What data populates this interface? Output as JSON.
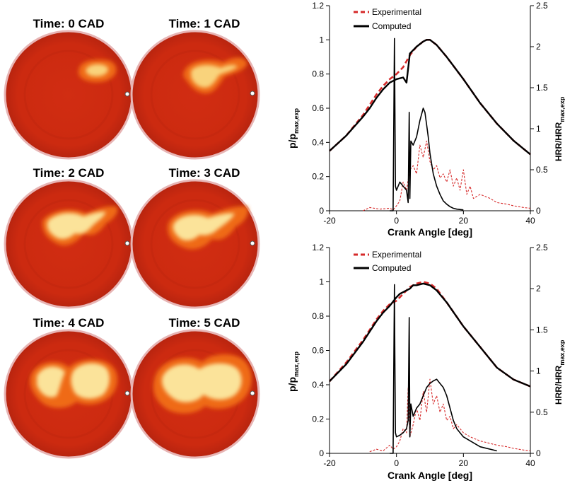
{
  "snapshot_panel": {
    "frames": [
      {
        "title": "Time: 0 CAD"
      },
      {
        "title": "Time: 1 CAD"
      },
      {
        "title": "Time: 2 CAD"
      },
      {
        "title": "Time: 3 CAD"
      },
      {
        "title": "Time: 4 CAD"
      },
      {
        "title": "Time: 5 CAD"
      }
    ],
    "colors": {
      "background": "#cf2a10",
      "rim": "#e3a0a0",
      "flame_outer": "#ef6a15",
      "flame_mid": "#f6a43c",
      "flame_core": "#fbe39a"
    }
  },
  "chart_data": [
    {
      "type": "line",
      "xlabel": "Crank Angle [deg]",
      "ylabel": {
        "main": "p/p",
        "sub": "max,exp"
      },
      "y2label": {
        "main": "HRR/HRR",
        "sub": "max,exp"
      },
      "xlim": [
        -20,
        40
      ],
      "ylim": [
        0,
        1.2
      ],
      "y2lim": [
        0,
        2.5
      ],
      "xticks": [
        "-20",
        "0",
        "20",
        "40"
      ],
      "yticks": [
        "0",
        "0.2",
        "0.4",
        "0.6",
        "0.8",
        "1",
        "1.2"
      ],
      "y2ticks": [
        "0",
        "0.5",
        "1",
        "1.5",
        "2",
        "2.5"
      ],
      "legend": [
        {
          "name": "Experimental",
          "style": "dashed",
          "color": "#d62a2a"
        },
        {
          "name": "Computed",
          "style": "solid",
          "color": "#000000"
        }
      ],
      "series": [
        {
          "name": "Experimental",
          "axis": "left",
          "color": "#d62a2a",
          "x": [
            -20,
            -15,
            -10,
            -8,
            -6,
            -4,
            -2,
            0,
            2,
            4,
            6,
            8,
            9,
            10,
            12,
            15,
            20,
            25,
            30,
            35,
            40
          ],
          "y": [
            0.35,
            0.44,
            0.56,
            0.62,
            0.68,
            0.73,
            0.77,
            0.8,
            0.84,
            0.91,
            0.96,
            0.99,
            1.0,
            1.0,
            0.97,
            0.9,
            0.77,
            0.63,
            0.51,
            0.41,
            0.33
          ]
        },
        {
          "name": "Computed",
          "axis": "left",
          "color": "#000000",
          "x": [
            -20,
            -15,
            -10,
            -8,
            -6,
            -4,
            -2,
            0,
            2,
            3,
            4,
            6,
            8,
            9,
            10,
            12,
            15,
            20,
            25,
            30,
            35,
            40
          ],
          "y": [
            0.35,
            0.44,
            0.55,
            0.6,
            0.66,
            0.71,
            0.75,
            0.77,
            0.78,
            0.75,
            0.92,
            0.96,
            0.99,
            1.0,
            1.0,
            0.97,
            0.9,
            0.77,
            0.63,
            0.51,
            0.41,
            0.33
          ]
        },
        {
          "name": "Experimental",
          "axis": "right",
          "color": "#d62a2a",
          "x": [
            -10,
            -8,
            -5,
            -2,
            -1,
            0,
            1,
            2,
            3,
            4,
            5,
            6,
            7,
            8,
            9,
            10,
            11,
            12,
            13,
            14,
            15,
            16,
            17,
            18,
            19,
            20,
            21,
            22,
            23,
            25,
            28,
            30,
            33,
            35,
            38,
            40
          ],
          "y": [
            0,
            0.04,
            0.02,
            0.03,
            0.01,
            0.06,
            0.12,
            0.35,
            0.25,
            0.5,
            0.55,
            0.45,
            0.8,
            0.65,
            0.85,
            0.6,
            0.5,
            0.55,
            0.4,
            0.45,
            0.35,
            0.5,
            0.3,
            0.4,
            0.25,
            0.5,
            0.2,
            0.3,
            0.15,
            0.2,
            0.15,
            0.1,
            0.08,
            0.06,
            0.04,
            0.03
          ]
        },
        {
          "name": "Computed",
          "axis": "right",
          "color": "#000000",
          "x": [
            -2,
            -1,
            -0.6,
            -0.5,
            -0.3,
            0,
            1,
            2,
            3,
            3.5,
            3.8,
            4,
            4.3,
            5,
            6,
            7,
            8,
            8.5,
            9,
            9.5,
            10,
            11,
            12,
            13,
            14,
            15,
            16,
            17,
            18,
            20
          ],
          "y": [
            0,
            0,
            2.1,
            1.5,
            0.3,
            0.25,
            0.35,
            0.3,
            0.25,
            0.1,
            1.2,
            0.15,
            0.85,
            0.8,
            0.9,
            1.1,
            1.25,
            1.2,
            1.05,
            0.9,
            0.7,
            0.45,
            0.3,
            0.2,
            0.12,
            0.08,
            0.05,
            0.03,
            0.02,
            0.01
          ]
        }
      ]
    },
    {
      "type": "line",
      "xlabel": "Crank Angle [deg]",
      "ylabel": {
        "main": "p/p",
        "sub": "max,exp"
      },
      "y2label": {
        "main": "HRR/HRR",
        "sub": "max,exp"
      },
      "xlim": [
        -20,
        40
      ],
      "ylim": [
        0,
        1.2
      ],
      "y2lim": [
        0,
        2.5
      ],
      "xticks": [
        "-20",
        "0",
        "20",
        "40"
      ],
      "yticks": [
        "0",
        "0.2",
        "0.4",
        "0.6",
        "0.8",
        "1",
        "1.2"
      ],
      "y2ticks": [
        "0",
        "0.5",
        "1",
        "1.5",
        "2",
        "2.5"
      ],
      "legend": [
        {
          "name": "Experimental",
          "style": "dashed",
          "color": "#d62a2a"
        },
        {
          "name": "Computed",
          "style": "solid",
          "color": "#000000"
        }
      ],
      "series": [
        {
          "name": "Experimental",
          "axis": "left",
          "color": "#d62a2a",
          "x": [
            -20,
            -15,
            -10,
            -8,
            -6,
            -4,
            -2,
            0,
            2,
            4,
            6,
            8,
            10,
            12,
            15,
            20,
            25,
            30,
            35,
            40
          ],
          "y": [
            0.42,
            0.53,
            0.66,
            0.72,
            0.78,
            0.83,
            0.87,
            0.89,
            0.93,
            0.97,
            0.99,
            1.0,
            0.99,
            0.96,
            0.88,
            0.74,
            0.62,
            0.5,
            0.43,
            0.39
          ]
        },
        {
          "name": "Computed",
          "axis": "left",
          "color": "#000000",
          "x": [
            -20,
            -15,
            -10,
            -8,
            -6,
            -4,
            -2,
            0,
            1,
            2,
            3,
            4,
            5,
            6,
            8,
            10,
            12,
            15,
            20,
            25,
            30,
            35,
            40
          ],
          "y": [
            0.42,
            0.52,
            0.65,
            0.71,
            0.77,
            0.82,
            0.86,
            0.91,
            0.93,
            0.94,
            0.95,
            0.96,
            0.98,
            0.98,
            0.99,
            0.98,
            0.95,
            0.88,
            0.74,
            0.62,
            0.5,
            0.43,
            0.39
          ]
        },
        {
          "name": "Experimental",
          "axis": "right",
          "color": "#d62a2a",
          "x": [
            -8,
            -6,
            -4,
            -2,
            -1,
            0,
            1,
            2,
            3,
            3.5,
            4,
            5,
            6,
            7,
            8,
            9,
            10,
            11,
            12,
            13,
            14,
            15,
            16,
            17,
            18,
            20,
            22,
            25,
            28,
            30,
            33,
            35,
            38,
            40
          ],
          "y": [
            0.02,
            0.05,
            0.03,
            0.1,
            0.05,
            0.08,
            0.15,
            0.3,
            0.25,
            0.8,
            0.2,
            0.35,
            0.55,
            0.4,
            0.75,
            0.5,
            0.9,
            0.6,
            0.7,
            0.5,
            0.6,
            0.4,
            0.45,
            0.3,
            0.35,
            0.25,
            0.2,
            0.15,
            0.12,
            0.1,
            0.08,
            0.06,
            0.04,
            0.03
          ]
        },
        {
          "name": "Computed",
          "axis": "right",
          "color": "#000000",
          "x": [
            -2,
            -1,
            -0.6,
            -0.5,
            -0.3,
            0,
            1,
            2,
            3,
            3.5,
            3.8,
            4,
            4.3,
            5,
            6,
            7,
            8,
            9,
            10,
            11,
            12,
            13,
            14,
            15,
            16,
            17,
            18,
            20,
            25,
            30
          ],
          "y": [
            0,
            0,
            2.05,
            1.3,
            0.25,
            0.2,
            0.22,
            0.25,
            0.3,
            0.4,
            1.65,
            0.2,
            0.6,
            0.45,
            0.55,
            0.6,
            0.7,
            0.8,
            0.85,
            0.88,
            0.9,
            0.85,
            0.8,
            0.7,
            0.55,
            0.4,
            0.3,
            0.2,
            0.08,
            0.03
          ]
        }
      ]
    }
  ]
}
